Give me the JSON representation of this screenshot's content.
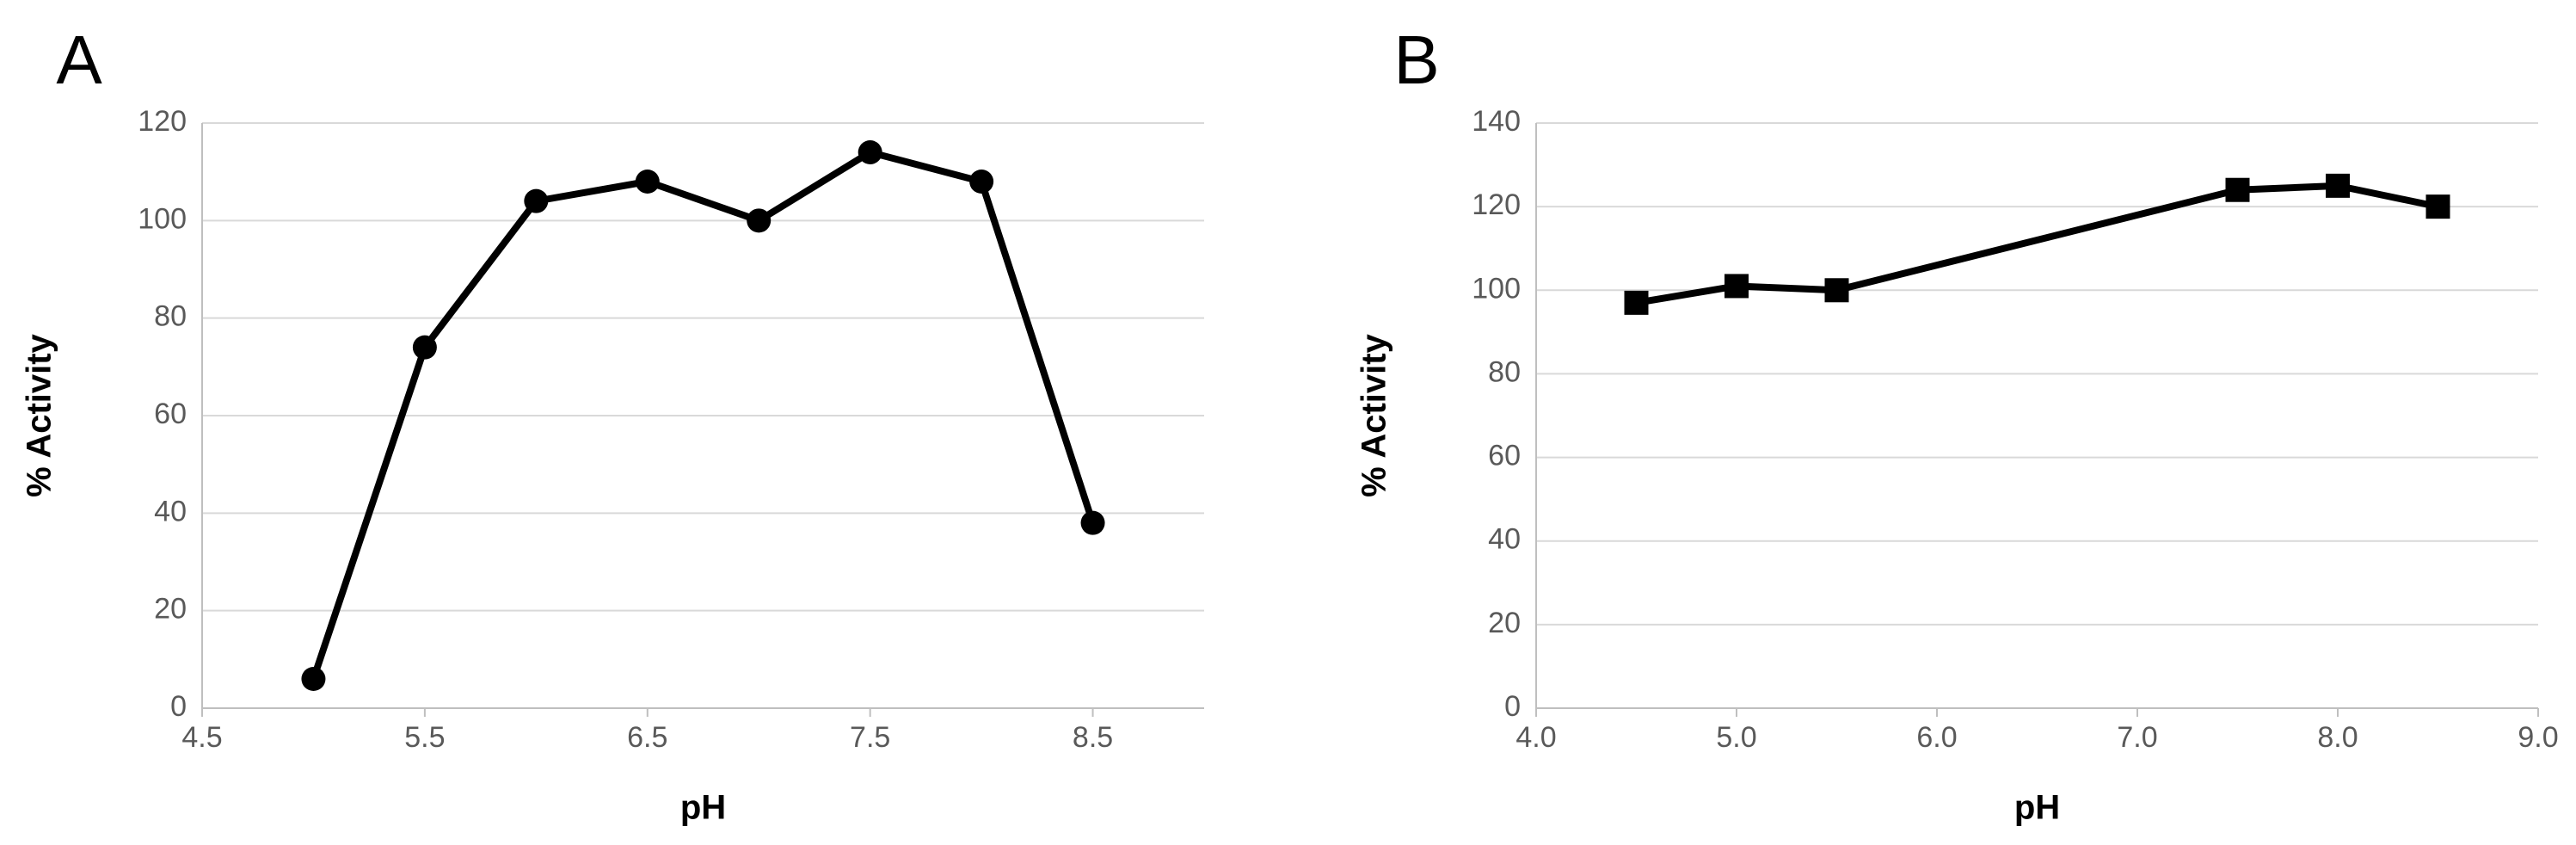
{
  "chart_data": [
    {
      "type": "line",
      "panel_label": "A",
      "x_label": "pH",
      "y_label": "% Activity",
      "x": [
        5.0,
        5.5,
        6.0,
        6.5,
        7.0,
        7.5,
        8.0,
        8.5
      ],
      "series": [
        {
          "color": "#000000",
          "marker": "circle",
          "values": [
            6,
            74,
            104,
            108,
            100,
            114,
            108,
            38
          ]
        }
      ],
      "xlim": [
        4.5,
        9.0
      ],
      "xticks": [
        4.5,
        5.5,
        6.5,
        7.5,
        8.5
      ],
      "ylim": [
        0,
        120
      ],
      "yticks": [
        0,
        20,
        40,
        60,
        80,
        100,
        120
      ],
      "grid": true
    },
    {
      "type": "line",
      "panel_label": "B",
      "x_label": "pH",
      "y_label": "% Activity",
      "x": [
        4.5,
        5.0,
        5.5,
        7.5,
        8.0,
        8.5
      ],
      "series": [
        {
          "color": "#000000",
          "marker": "square",
          "values": [
            97,
            101,
            100,
            124,
            125,
            120
          ]
        }
      ],
      "xlim": [
        4.0,
        9.0
      ],
      "xticks": [
        {
          "value": 4,
          "label": "4.0"
        },
        {
          "value": 5,
          "label": "5.0"
        },
        {
          "value": 6,
          "label": "6.0"
        },
        {
          "value": 7,
          "label": "7.0"
        },
        {
          "value": 8,
          "label": "8.0"
        },
        {
          "value": 9,
          "label": "9.0"
        }
      ],
      "ylim": [
        0,
        140
      ],
      "yticks": [
        0,
        20,
        40,
        60,
        80,
        100,
        120,
        140
      ],
      "grid": true
    }
  ]
}
